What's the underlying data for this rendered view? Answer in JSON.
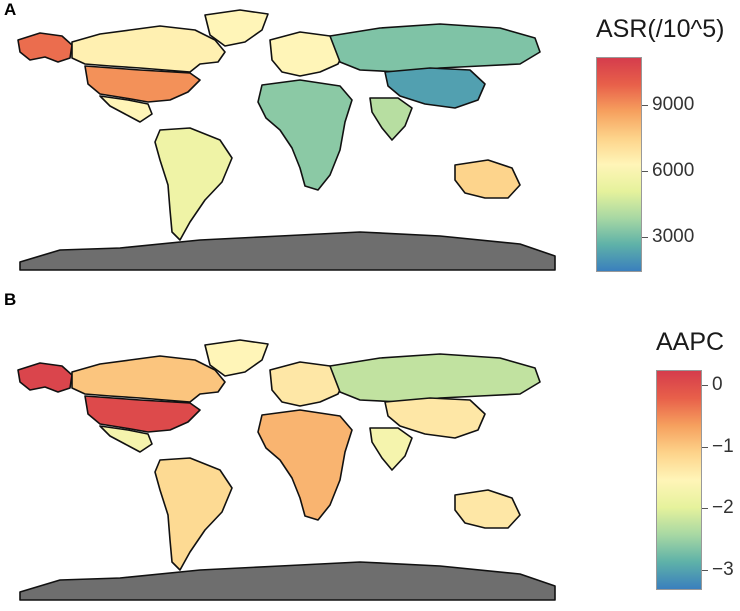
{
  "panels": [
    {
      "label": "A",
      "legend": {
        "title": "ASR(/10^5)",
        "ticks": [
          "9000",
          "6000",
          "3000"
        ],
        "tick_values": [
          9000,
          6000,
          3000
        ],
        "range": [
          1500,
          11200
        ],
        "colors": [
          "#3a7fbd",
          "#5fb2a8",
          "#a8d8a3",
          "#e6f29c",
          "#fff5b8",
          "#fdd38a",
          "#f6a05e",
          "#e8604a",
          "#d53c4c"
        ]
      },
      "regions": [
        {
          "name": "Alaska",
          "level": 0.85
        },
        {
          "name": "Canada",
          "level": 0.52
        },
        {
          "name": "Greenland",
          "level": 0.5
        },
        {
          "name": "United States",
          "level": 0.78
        },
        {
          "name": "Mexico",
          "level": 0.5
        },
        {
          "name": "South America",
          "level": 0.42
        },
        {
          "name": "Europe",
          "level": 0.5
        },
        {
          "name": "Russia",
          "level": 0.18
        },
        {
          "name": "China",
          "level": 0.08
        },
        {
          "name": "India",
          "level": 0.28
        },
        {
          "name": "Africa",
          "level": 0.2
        },
        {
          "name": "Australia",
          "level": 0.62
        },
        {
          "name": "Antarctica",
          "level": null
        }
      ]
    },
    {
      "label": "B",
      "legend": {
        "title": "AAPC",
        "ticks": [
          "0",
          "−1",
          "−2",
          "−3"
        ],
        "tick_values": [
          0,
          -1,
          -2,
          -3
        ],
        "range": [
          -3.3,
          0.25
        ],
        "colors": [
          "#3a7fbd",
          "#5fb2a8",
          "#a8d8a3",
          "#e6f29c",
          "#fff5b8",
          "#fdd38a",
          "#f6a05e",
          "#e8604a",
          "#d53c4c"
        ]
      },
      "regions": [
        {
          "name": "Alaska",
          "level": 0.97
        },
        {
          "name": "Canada",
          "level": 0.66
        },
        {
          "name": "Greenland",
          "level": 0.5
        },
        {
          "name": "United States",
          "level": 0.95
        },
        {
          "name": "Mexico",
          "level": 0.45
        },
        {
          "name": "South America",
          "level": 0.6
        },
        {
          "name": "Europe",
          "level": 0.55
        },
        {
          "name": "Russia",
          "level": 0.3
        },
        {
          "name": "China",
          "level": 0.55
        },
        {
          "name": "India",
          "level": 0.45
        },
        {
          "name": "Africa",
          "level": 0.7
        },
        {
          "name": "Australia",
          "level": 0.55
        },
        {
          "name": "Antarctica",
          "level": null
        }
      ]
    }
  ]
}
